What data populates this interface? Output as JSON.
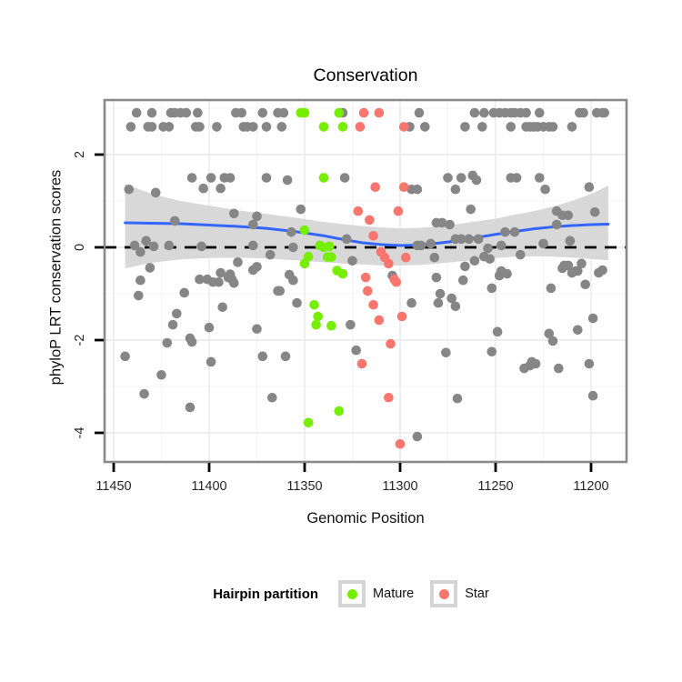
{
  "chart_data": {
    "type": "scatter",
    "title": "Conservation",
    "xlabel": "Genomic Position",
    "ylabel": "phyloP LRT conservation scores",
    "x_axis": {
      "ticks": [
        11450,
        11400,
        11350,
        11300,
        11250,
        11200
      ],
      "minor_ticks": [
        11425,
        11375,
        11325,
        11275,
        11225
      ],
      "reversed": true,
      "range": [
        11455,
        11182
      ]
    },
    "y_axis": {
      "ticks": [
        2,
        0,
        -2,
        -4
      ],
      "minor_ticks": [
        3,
        1,
        -1,
        -3
      ],
      "range": [
        -4.6,
        3.2
      ]
    },
    "grid": {
      "on": true,
      "major_color": "#e8e8e8",
      "minor_color": "#f4f4f4"
    },
    "panel": {
      "background": "#ffffff",
      "border_color": "#8a8a8a"
    },
    "reference_line": {
      "y": 0,
      "style": "dashed",
      "color": "#000000"
    },
    "smooth": {
      "color": "#3366FF",
      "points": [
        [
          11444,
          0.53
        ],
        [
          11430,
          0.52
        ],
        [
          11415,
          0.51
        ],
        [
          11400,
          0.48
        ],
        [
          11385,
          0.45
        ],
        [
          11370,
          0.41
        ],
        [
          11355,
          0.34
        ],
        [
          11340,
          0.25
        ],
        [
          11330,
          0.17
        ],
        [
          11320,
          0.1
        ],
        [
          11310,
          0.06
        ],
        [
          11300,
          0.04
        ],
        [
          11290,
          0.05
        ],
        [
          11280,
          0.09
        ],
        [
          11270,
          0.14
        ],
        [
          11260,
          0.21
        ],
        [
          11250,
          0.28
        ],
        [
          11240,
          0.34
        ],
        [
          11230,
          0.4
        ],
        [
          11220,
          0.44
        ],
        [
          11210,
          0.47
        ],
        [
          11200,
          0.49
        ],
        [
          11191,
          0.5
        ]
      ]
    },
    "confidence_band": {
      "color": "#d8d8d8",
      "points": [
        [
          11444,
          1.37,
          -0.45
        ],
        [
          11430,
          1.15,
          -0.33
        ],
        [
          11415,
          1.0,
          -0.26
        ],
        [
          11400,
          0.9,
          -0.23
        ],
        [
          11385,
          0.8,
          -0.22
        ],
        [
          11370,
          0.72,
          -0.24
        ],
        [
          11355,
          0.64,
          -0.28
        ],
        [
          11340,
          0.55,
          -0.32
        ],
        [
          11330,
          0.5,
          -0.35
        ],
        [
          11320,
          0.46,
          -0.37
        ],
        [
          11310,
          0.43,
          -0.39
        ],
        [
          11300,
          0.41,
          -0.39
        ],
        [
          11290,
          0.42,
          -0.38
        ],
        [
          11280,
          0.45,
          -0.35
        ],
        [
          11270,
          0.5,
          -0.31
        ],
        [
          11260,
          0.56,
          -0.27
        ],
        [
          11250,
          0.62,
          -0.23
        ],
        [
          11240,
          0.7,
          -0.2
        ],
        [
          11230,
          0.78,
          -0.19
        ],
        [
          11220,
          0.88,
          -0.2
        ],
        [
          11210,
          1.0,
          -0.22
        ],
        [
          11200,
          1.15,
          -0.25
        ],
        [
          11191,
          1.33,
          -0.28
        ]
      ]
    },
    "series": [
      {
        "name": "",
        "color": "#868686",
        "points": [
          [
            11438,
            2.9
          ],
          [
            11430,
            2.9
          ],
          [
            11420,
            2.9
          ],
          [
            11418,
            2.9
          ],
          [
            11415,
            2.9
          ],
          [
            11412,
            2.9
          ],
          [
            11406,
            2.9
          ],
          [
            11386,
            2.9
          ],
          [
            11383,
            2.9
          ],
          [
            11372,
            2.9
          ],
          [
            11364,
            2.9
          ],
          [
            11361,
            2.9
          ],
          [
            11330,
            2.9
          ],
          [
            11290,
            2.9
          ],
          [
            11261,
            2.9
          ],
          [
            11256,
            2.9
          ],
          [
            11251,
            2.9
          ],
          [
            11248,
            2.9
          ],
          [
            11245,
            2.9
          ],
          [
            11242,
            2.9
          ],
          [
            11240,
            2.9
          ],
          [
            11237,
            2.9
          ],
          [
            11234,
            2.9
          ],
          [
            11227,
            2.9
          ],
          [
            11206,
            2.9
          ],
          [
            11204,
            2.9
          ],
          [
            11197,
            2.9
          ],
          [
            11194,
            2.9
          ],
          [
            11193,
            2.9
          ],
          [
            11441,
            2.6
          ],
          [
            11432,
            2.6
          ],
          [
            11430,
            2.6
          ],
          [
            11424,
            2.6
          ],
          [
            11421,
            2.6
          ],
          [
            11407,
            2.6
          ],
          [
            11405,
            2.6
          ],
          [
            11396,
            2.6
          ],
          [
            11382,
            2.6
          ],
          [
            11380,
            2.6
          ],
          [
            11377,
            2.6
          ],
          [
            11370,
            2.6
          ],
          [
            11362,
            2.6
          ],
          [
            11295,
            2.6
          ],
          [
            11287,
            2.6
          ],
          [
            11266,
            2.6
          ],
          [
            11257,
            2.6
          ],
          [
            11242,
            2.6
          ],
          [
            11234,
            2.6
          ],
          [
            11232,
            2.6
          ],
          [
            11230,
            2.6
          ],
          [
            11228,
            2.6
          ],
          [
            11225,
            2.6
          ],
          [
            11222,
            2.6
          ],
          [
            11220,
            2.6
          ],
          [
            11210,
            2.6
          ],
          [
            11409,
            1.5
          ],
          [
            11399,
            1.5
          ],
          [
            11392,
            1.5
          ],
          [
            11389,
            1.5
          ],
          [
            11370,
            1.5
          ],
          [
            11359,
            1.45
          ],
          [
            11329,
            1.5
          ],
          [
            11275,
            1.5
          ],
          [
            11268,
            1.5
          ],
          [
            11262,
            1.55
          ],
          [
            11260,
            1.45
          ],
          [
            11242,
            1.5
          ],
          [
            11239,
            1.5
          ],
          [
            11227,
            1.5
          ],
          [
            11442,
            1.25
          ],
          [
            11428,
            1.18
          ],
          [
            11403,
            1.27
          ],
          [
            11394,
            1.27
          ],
          [
            11294,
            1.25
          ],
          [
            11291,
            1.25
          ],
          [
            11271,
            1.25
          ],
          [
            11224,
            1.25
          ],
          [
            11201,
            1.3
          ],
          [
            11418,
            0.57
          ],
          [
            11387,
            0.73
          ],
          [
            11377,
            0.49
          ],
          [
            11375,
            0.67
          ],
          [
            11352,
            0.82
          ],
          [
            11281,
            0.53
          ],
          [
            11278,
            0.53
          ],
          [
            11274,
            0.49
          ],
          [
            11263,
            0.82
          ],
          [
            11218,
            0.78
          ],
          [
            11218,
            0.49
          ],
          [
            11215,
            0.69
          ],
          [
            11212,
            0.69
          ],
          [
            11198,
            0.76
          ],
          [
            11439,
            0.04
          ],
          [
            11436,
            -0.1
          ],
          [
            11433,
            0.14
          ],
          [
            11429,
            0.02
          ],
          [
            11421,
            0.04
          ],
          [
            11404,
            0.02
          ],
          [
            11377,
            0.04
          ],
          [
            11368,
            -0.16
          ],
          [
            11357,
            0.33
          ],
          [
            11356,
            0.0
          ],
          [
            11328,
            0.18
          ],
          [
            11325,
            -0.29
          ],
          [
            11291,
            0.04
          ],
          [
            11289,
            0.04
          ],
          [
            11284,
            0.08
          ],
          [
            11282,
            -0.22
          ],
          [
            11271,
            0.18
          ],
          [
            11268,
            0.18
          ],
          [
            11264,
            0.18
          ],
          [
            11259,
            0.18
          ],
          [
            11254,
            -0.02
          ],
          [
            11247,
            0.04
          ],
          [
            11245,
            0.33
          ],
          [
            11240,
            0.33
          ],
          [
            11237,
            -0.16
          ],
          [
            11225,
            0.08
          ],
          [
            11211,
            0.14
          ],
          [
            11431,
            -0.44
          ],
          [
            11394,
            -0.55
          ],
          [
            11389,
            -0.58
          ],
          [
            11385,
            -0.32
          ],
          [
            11375,
            -0.42
          ],
          [
            11358,
            -0.59
          ],
          [
            11304,
            -0.61
          ],
          [
            11266,
            -0.41
          ],
          [
            11261,
            -0.29
          ],
          [
            11256,
            -0.2
          ],
          [
            11253,
            -0.25
          ],
          [
            11248,
            -0.61
          ],
          [
            11247,
            -0.51
          ],
          [
            11244,
            -0.57
          ],
          [
            11215,
            -0.45
          ],
          [
            11214,
            -0.39
          ],
          [
            11212,
            -0.39
          ],
          [
            11210,
            -0.55
          ],
          [
            11208,
            -0.51
          ],
          [
            11207,
            -0.51
          ],
          [
            11205,
            -0.35
          ],
          [
            11196,
            -0.55
          ],
          [
            11194,
            -0.49
          ],
          [
            11437,
            -1.04
          ],
          [
            11436,
            -0.71
          ],
          [
            11413,
            -0.98
          ],
          [
            11405,
            -0.69
          ],
          [
            11401,
            -0.69
          ],
          [
            11398,
            -0.75
          ],
          [
            11395,
            -0.75
          ],
          [
            11393,
            -1.29
          ],
          [
            11390,
            -0.65
          ],
          [
            11388,
            -0.69
          ],
          [
            11387,
            -0.77
          ],
          [
            11377,
            -0.49
          ],
          [
            11364,
            -0.94
          ],
          [
            11363,
            -0.94
          ],
          [
            11356,
            -0.71
          ],
          [
            11354,
            -1.2
          ],
          [
            11294,
            -1.2
          ],
          [
            11281,
            -0.65
          ],
          [
            11280,
            -1.2
          ],
          [
            11279,
            -1.0
          ],
          [
            11273,
            -1.1
          ],
          [
            11271,
            -1.27
          ],
          [
            11267,
            -0.71
          ],
          [
            11252,
            -0.88
          ],
          [
            11221,
            -0.88
          ],
          [
            11203,
            -0.8
          ],
          [
            11422,
            -2.06
          ],
          [
            11419,
            -1.67
          ],
          [
            11417,
            -1.43
          ],
          [
            11410,
            -1.96
          ],
          [
            11409,
            -2.04
          ],
          [
            11400,
            -1.73
          ],
          [
            11375,
            -1.76
          ],
          [
            11326,
            -1.67
          ],
          [
            11249,
            -1.82
          ],
          [
            11222,
            -1.86
          ],
          [
            11220,
            -2.02
          ],
          [
            11207,
            -1.78
          ],
          [
            11199,
            -1.53
          ],
          [
            11444,
            -2.35
          ],
          [
            11434,
            -3.16
          ],
          [
            11425,
            -2.75
          ],
          [
            11410,
            -3.45
          ],
          [
            11399,
            -2.47
          ],
          [
            11372,
            -2.35
          ],
          [
            11367,
            -3.24
          ],
          [
            11360,
            -2.35
          ],
          [
            11323,
            -2.22
          ],
          [
            11276,
            -2.27
          ],
          [
            11270,
            -3.26
          ],
          [
            11252,
            -2.25
          ],
          [
            11235,
            -2.61
          ],
          [
            11232,
            -2.55
          ],
          [
            11231,
            -2.47
          ],
          [
            11229,
            -2.51
          ],
          [
            11217,
            -2.61
          ],
          [
            11201,
            -2.51
          ],
          [
            11199,
            -3.2
          ],
          [
            11291,
            -4.08
          ]
        ]
      },
      {
        "name": "Mature",
        "color": "#76EE00",
        "points": [
          [
            11352,
            2.9
          ],
          [
            11350,
            2.9
          ],
          [
            11332,
            2.9
          ],
          [
            11340,
            2.6
          ],
          [
            11330,
            2.6
          ],
          [
            11340,
            1.5
          ],
          [
            11350,
            0.37
          ],
          [
            11342,
            0.04
          ],
          [
            11340,
            0.0
          ],
          [
            11337,
            0.02
          ],
          [
            11348,
            -0.2
          ],
          [
            11338,
            -0.21
          ],
          [
            11336,
            -0.21
          ],
          [
            11350,
            -0.35
          ],
          [
            11333,
            -0.5
          ],
          [
            11330,
            -0.57
          ],
          [
            11345,
            -1.24
          ],
          [
            11343,
            -1.49
          ],
          [
            11344,
            -1.67
          ],
          [
            11336,
            -1.69
          ],
          [
            11332,
            -3.53
          ],
          [
            11348,
            -3.78
          ]
        ]
      },
      {
        "name": "Star",
        "color": "#F8766D",
        "points": [
          [
            11319,
            2.9
          ],
          [
            11311,
            2.9
          ],
          [
            11321,
            2.6
          ],
          [
            11298,
            2.6
          ],
          [
            11313,
            1.3
          ],
          [
            11298,
            1.3
          ],
          [
            11322,
            0.78
          ],
          [
            11316,
            0.59
          ],
          [
            11301,
            0.78
          ],
          [
            11314,
            0.25
          ],
          [
            11310,
            -0.1
          ],
          [
            11308,
            -0.22
          ],
          [
            11306,
            -0.35
          ],
          [
            11297,
            -0.22
          ],
          [
            11318,
            -0.65
          ],
          [
            11303,
            -0.69
          ],
          [
            11302,
            -0.75
          ],
          [
            11317,
            -0.94
          ],
          [
            11314,
            -1.24
          ],
          [
            11311,
            -1.57
          ],
          [
            11299,
            -1.49
          ],
          [
            11305,
            -2.08
          ],
          [
            11320,
            -2.51
          ],
          [
            11306,
            -3.24
          ],
          [
            11300,
            -4.24
          ]
        ]
      }
    ],
    "legend": {
      "title": "Hairpin partition",
      "position": "bottom",
      "entries": [
        {
          "label": "Mature",
          "color": "#76EE00"
        },
        {
          "label": "Star",
          "color": "#F8766D"
        }
      ]
    }
  }
}
